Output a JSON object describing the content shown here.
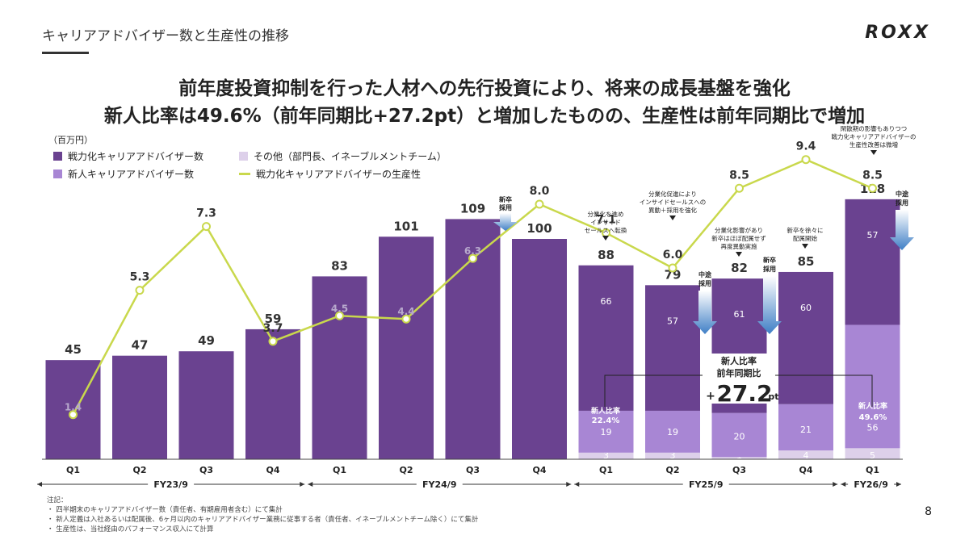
{
  "header": {
    "title": "キャリアアドバイザー数と生産性の推移",
    "logo": "ROXX"
  },
  "headline": {
    "line1": "前年度投資抑制を行った人材への先行投資により、将来の成長基盤を強化",
    "line2": "新人比率は49.6%（前年同期比+27.2pt）と増加したものの、生産性は前年同期比で増加"
  },
  "unit": "（百万円）",
  "legend": {
    "experienced": "戦力化キャリアアドバイザー数",
    "new": "新人キャリアアドバイザー数",
    "other": "その他（部門長、イネーブルメントチーム）",
    "productivity": "戦力化キャリアアドバイザーの生産性"
  },
  "colors": {
    "experienced": "#6a4290",
    "new": "#a886d4",
    "other": "#ddd0ea",
    "line": "#c9d84c",
    "arrow": "#3f7fc6"
  },
  "chart_data": {
    "type": "bar",
    "categories": [
      "Q1",
      "Q2",
      "Q3",
      "Q4",
      "Q1",
      "Q2",
      "Q3",
      "Q4",
      "Q1",
      "Q2",
      "Q3",
      "Q4",
      "Q1"
    ],
    "series": [
      {
        "name": "戦力化キャリアアドバイザー数",
        "values": [
          45,
          47,
          49,
          59,
          83,
          101,
          109,
          100,
          66,
          57,
          61,
          60,
          57
        ]
      },
      {
        "name": "新人キャリアアドバイザー数",
        "values": [
          null,
          null,
          null,
          null,
          null,
          null,
          null,
          null,
          19,
          19,
          20,
          21,
          56
        ]
      },
      {
        "name": "その他（部門長、イネーブルメントチーム）",
        "values": [
          null,
          null,
          null,
          null,
          null,
          null,
          null,
          null,
          3,
          3,
          1,
          4,
          5
        ]
      },
      {
        "name": "戦力化キャリアアドバイザーの生産性",
        "values": [
          1.4,
          5.3,
          7.3,
          3.7,
          4.5,
          4.4,
          6.3,
          8.0,
          7.1,
          6.0,
          8.5,
          9.4,
          8.5
        ]
      }
    ],
    "totals": [
      45,
      47,
      49,
      59,
      83,
      101,
      109,
      100,
      88,
      79,
      82,
      85,
      118
    ],
    "fiscal_years": [
      {
        "label": "FY23/9",
        "from": 0,
        "to": 3
      },
      {
        "label": "FY24/9",
        "from": 4,
        "to": 7
      },
      {
        "label": "FY25/9",
        "from": 8,
        "to": 11
      },
      {
        "label": "FY26/9",
        "from": 12,
        "to": 12
      }
    ],
    "ylim_bars": [
      0,
      140
    ],
    "ylim_line": [
      0,
      11
    ]
  },
  "annotations": {
    "ratio_prev_label": "新人比率",
    "ratio_prev_value": "22.4%",
    "ratio_now_label": "新人比率",
    "ratio_now_value": "49.6%",
    "yoy_label_1": "新人比率",
    "yoy_label_2": "前年同期比",
    "yoy_plus": "+",
    "yoy_value": "27.2",
    "yoy_unit": "pt",
    "note_q1fy25": [
      "分業化を進め",
      "インサイド",
      "セールスへ転換"
    ],
    "note_q2fy25": [
      "分業化促進により",
      "インサイドセールスへの",
      "異動＋採用を強化"
    ],
    "note_q3fy25": [
      "分業化影響があり",
      "新卒はほぼ配属せず",
      "再度異動実施"
    ],
    "note_q4fy25": [
      "新卒を徐々に",
      "配属開始"
    ],
    "note_q1fy26": [
      "閑散期の影響もありつつ",
      "戦力化キャリアアドバイザーの",
      "生産性改善は微増"
    ],
    "arrow_shinsotsu_1": [
      "新卒",
      "採用"
    ],
    "arrow_chuto_1": [
      "中途",
      "採用"
    ],
    "arrow_shinsotsu_2": [
      "新卒",
      "採用"
    ],
    "arrow_chuto_2": [
      "中途",
      "採用"
    ]
  },
  "notes": {
    "title": "注記：",
    "items": [
      "・ 四半期末のキャリアアドバイザー数（責任者、有期雇用者含む）にて集計",
      "・ 新人定義は入社あるいは配属後、6ヶ月以内のキャリアアドバイザー業務に従事する者（責任者、イネーブルメントチーム除く）にて集計",
      "・ 生産性は、当社経由のパフォーマンス収入にて計算"
    ]
  },
  "page_number": "8"
}
